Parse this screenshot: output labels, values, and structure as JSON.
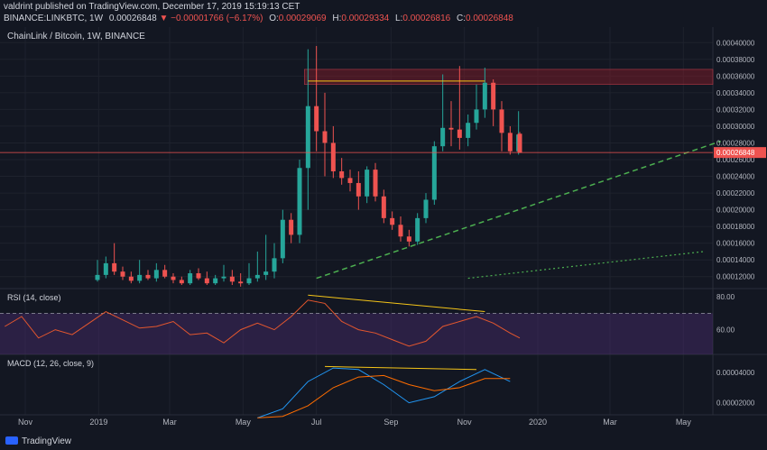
{
  "header": {
    "publisher": "valdrint published on TradingView.com, December 17, 2019 15:19:13 CET",
    "symbol": "BINANCE:LINKBTC, 1W",
    "last": "0.00026848",
    "change_arrow": "▼",
    "change": "−0.00001766 (−6.17%)",
    "o_label": "O:",
    "o": "0.00029069",
    "h_label": "H:",
    "h": "0.00029334",
    "l_label": "L:",
    "l": "0.00026816",
    "c_label": "C:",
    "c": "0.00026848"
  },
  "footer": {
    "brand": "TradingView"
  },
  "colors": {
    "background": "#131722",
    "up": "#26a69a",
    "down": "#ef5350",
    "rsi_line": "#e4572e",
    "rsi_band": "#4a2d6e",
    "macd": "#2196f3",
    "signal": "#ff6d00",
    "trendline": "#4caf50",
    "annotation": "#f5c518",
    "resistance_zone": "#8b1c2a"
  },
  "chart_data": [
    {
      "type": "candlestick",
      "title": "ChainLink / Bitcoin, 1W, BINANCE",
      "x_tick_labels": [
        "Nov",
        "2019",
        "Mar",
        "May",
        "Jul",
        "Sep",
        "Nov",
        "2020",
        "Mar",
        "May"
      ],
      "y_tick_labels": [
        "0.00040000",
        "0.00038000",
        "0.00036000",
        "0.00034000",
        "0.00032000",
        "0.00030000",
        "0.00028000",
        "0.00026000",
        "0.00024000",
        "0.00022000",
        "0.00020000",
        "0.00018000",
        "0.00016000",
        "0.00014000",
        "0.00012000"
      ],
      "ylim": [
        0.00011,
        0.00041
      ],
      "current_price_label": "0.00026848",
      "candles": [
        {
          "date": "2018-12-31",
          "o": 0.000116,
          "h": 0.00014,
          "l": 0.000114,
          "c": 0.000122
        },
        {
          "date": "2019-01-07",
          "o": 0.000122,
          "h": 0.000144,
          "l": 0.000118,
          "c": 0.000136
        },
        {
          "date": "2019-01-14",
          "o": 0.000136,
          "h": 0.00016,
          "l": 0.000122,
          "c": 0.000126
        },
        {
          "date": "2019-01-21",
          "o": 0.000126,
          "h": 0.000132,
          "l": 0.000116,
          "c": 0.00012
        },
        {
          "date": "2019-01-28",
          "o": 0.00012,
          "h": 0.000126,
          "l": 0.000112,
          "c": 0.000115
        },
        {
          "date": "2019-02-04",
          "o": 0.000115,
          "h": 0.00014,
          "l": 0.000112,
          "c": 0.000122
        },
        {
          "date": "2019-02-11",
          "o": 0.000122,
          "h": 0.000128,
          "l": 0.000116,
          "c": 0.000118
        },
        {
          "date": "2019-02-18",
          "o": 0.000118,
          "h": 0.000136,
          "l": 0.000114,
          "c": 0.000128
        },
        {
          "date": "2019-02-25",
          "o": 0.000128,
          "h": 0.000134,
          "l": 0.000118,
          "c": 0.00012
        },
        {
          "date": "2019-03-04",
          "o": 0.00012,
          "h": 0.000124,
          "l": 0.000112,
          "c": 0.000116
        },
        {
          "date": "2019-03-11",
          "o": 0.000116,
          "h": 0.00012,
          "l": 0.00011,
          "c": 0.000112
        },
        {
          "date": "2019-03-18",
          "o": 0.000112,
          "h": 0.000128,
          "l": 0.00011,
          "c": 0.000124
        },
        {
          "date": "2019-03-25",
          "o": 0.000124,
          "h": 0.00013,
          "l": 0.000116,
          "c": 0.000118
        },
        {
          "date": "2019-04-01",
          "o": 0.000118,
          "h": 0.000126,
          "l": 0.00011,
          "c": 0.000112
        },
        {
          "date": "2019-04-08",
          "o": 0.000112,
          "h": 0.000122,
          "l": 0.00011,
          "c": 0.000118
        },
        {
          "date": "2019-04-15",
          "o": 0.000118,
          "h": 0.000134,
          "l": 0.000114,
          "c": 0.00012
        },
        {
          "date": "2019-04-22",
          "o": 0.00012,
          "h": 0.000128,
          "l": 0.00011,
          "c": 0.000114
        },
        {
          "date": "2019-04-29",
          "o": 0.000114,
          "h": 0.000124,
          "l": 0.000108,
          "c": 0.000112
        },
        {
          "date": "2019-05-06",
          "o": 0.000112,
          "h": 0.000136,
          "l": 0.00011,
          "c": 0.000118
        },
        {
          "date": "2019-05-13",
          "o": 0.000118,
          "h": 0.00015,
          "l": 0.000114,
          "c": 0.000122
        },
        {
          "date": "2019-05-20",
          "o": 0.000122,
          "h": 0.00017,
          "l": 0.000116,
          "c": 0.000126
        },
        {
          "date": "2019-05-27",
          "o": 0.000126,
          "h": 0.00016,
          "l": 0.000118,
          "c": 0.000142
        },
        {
          "date": "2019-06-03",
          "o": 0.000142,
          "h": 0.0002,
          "l": 0.000136,
          "c": 0.000188
        },
        {
          "date": "2019-06-10",
          "o": 0.000188,
          "h": 0.000196,
          "l": 0.00016,
          "c": 0.00017
        },
        {
          "date": "2019-06-17",
          "o": 0.00017,
          "h": 0.00026,
          "l": 0.00016,
          "c": 0.00025
        },
        {
          "date": "2019-06-24",
          "o": 0.00025,
          "h": 0.000392,
          "l": 0.0002,
          "c": 0.000324
        },
        {
          "date": "2019-07-01",
          "o": 0.000324,
          "h": 0.000396,
          "l": 0.00027,
          "c": 0.000294
        },
        {
          "date": "2019-07-08",
          "o": 0.000294,
          "h": 0.00034,
          "l": 0.00024,
          "c": 0.00028
        },
        {
          "date": "2019-07-15",
          "o": 0.00028,
          "h": 0.0003,
          "l": 0.000238,
          "c": 0.000246
        },
        {
          "date": "2019-07-22",
          "o": 0.000246,
          "h": 0.000262,
          "l": 0.00023,
          "c": 0.000238
        },
        {
          "date": "2019-07-29",
          "o": 0.000238,
          "h": 0.000248,
          "l": 0.000222,
          "c": 0.000232
        },
        {
          "date": "2019-08-05",
          "o": 0.000232,
          "h": 0.000246,
          "l": 0.0002,
          "c": 0.000216
        },
        {
          "date": "2019-08-12",
          "o": 0.000216,
          "h": 0.000252,
          "l": 0.000208,
          "c": 0.000248
        },
        {
          "date": "2019-08-19",
          "o": 0.000248,
          "h": 0.000256,
          "l": 0.00021,
          "c": 0.000216
        },
        {
          "date": "2019-08-26",
          "o": 0.000216,
          "h": 0.000224,
          "l": 0.000184,
          "c": 0.00019
        },
        {
          "date": "2019-09-02",
          "o": 0.00019,
          "h": 0.000198,
          "l": 0.000176,
          "c": 0.000182
        },
        {
          "date": "2019-09-09",
          "o": 0.000182,
          "h": 0.000192,
          "l": 0.000162,
          "c": 0.000168
        },
        {
          "date": "2019-09-16",
          "o": 0.000168,
          "h": 0.000176,
          "l": 0.000156,
          "c": 0.000162
        },
        {
          "date": "2019-09-23",
          "o": 0.000162,
          "h": 0.000196,
          "l": 0.000158,
          "c": 0.00019
        },
        {
          "date": "2019-09-30",
          "o": 0.00019,
          "h": 0.00022,
          "l": 0.000184,
          "c": 0.000212
        },
        {
          "date": "2019-10-07",
          "o": 0.000212,
          "h": 0.000282,
          "l": 0.000206,
          "c": 0.000276
        },
        {
          "date": "2019-10-14",
          "o": 0.000276,
          "h": 0.000362,
          "l": 0.00027,
          "c": 0.000298
        },
        {
          "date": "2019-10-21",
          "o": 0.000298,
          "h": 0.00033,
          "l": 0.000276,
          "c": 0.000296
        },
        {
          "date": "2019-10-28",
          "o": 0.000296,
          "h": 0.000372,
          "l": 0.000272,
          "c": 0.000286
        },
        {
          "date": "2019-11-04",
          "o": 0.000286,
          "h": 0.000314,
          "l": 0.000276,
          "c": 0.000304
        },
        {
          "date": "2019-11-11",
          "o": 0.000304,
          "h": 0.00035,
          "l": 0.000296,
          "c": 0.00032
        },
        {
          "date": "2019-11-18",
          "o": 0.00032,
          "h": 0.00037,
          "l": 0.00031,
          "c": 0.000352
        },
        {
          "date": "2019-11-25",
          "o": 0.000352,
          "h": 0.000356,
          "l": 0.0003,
          "c": 0.00032
        },
        {
          "date": "2019-12-02",
          "o": 0.00032,
          "h": 0.00033,
          "l": 0.00027,
          "c": 0.000292
        },
        {
          "date": "2019-12-09",
          "o": 0.000292,
          "h": 0.0003,
          "l": 0.000266,
          "c": 0.00027
        },
        {
          "date": "2019-12-16",
          "o": 0.00027,
          "h": 0.000318,
          "l": 0.000266,
          "c": 0.00029
        },
        {
          "date": "2019-12-17",
          "o": 0.000291,
          "h": 0.000293,
          "l": 0.000268,
          "c": 0.000268
        }
      ],
      "resistance_zone": [
        0.00035,
        0.000368
      ],
      "horizontal_line": {
        "date_from": "2019-06-24",
        "date_to": "2019-11-18",
        "y": 0.000354
      },
      "trendline_dashed": {
        "points": [
          [
            "2019-07-01",
            0.000118
          ],
          [
            "2020-06-01",
            0.000282
          ]
        ]
      },
      "trendline_dotted": {
        "points": [
          [
            "2019-11-04",
            0.000118
          ],
          [
            "2020-05-18",
            0.00015
          ]
        ]
      }
    },
    {
      "type": "line",
      "title": "RSI (14, close)",
      "y_tick_labels": [
        "80.00",
        "60.00"
      ],
      "ylim": [
        45,
        85
      ],
      "reference_level": 70,
      "band": [
        40,
        70
      ],
      "x": [
        "2018-10-15",
        "2018-10-29",
        "2018-11-12",
        "2018-11-26",
        "2018-12-10",
        "2018-12-24",
        "2019-01-07",
        "2019-01-21",
        "2019-02-04",
        "2019-02-18",
        "2019-03-04",
        "2019-03-18",
        "2019-04-01",
        "2019-04-15",
        "2019-04-29",
        "2019-05-13",
        "2019-05-27",
        "2019-06-10",
        "2019-06-24",
        "2019-07-08",
        "2019-07-22",
        "2019-08-05",
        "2019-08-19",
        "2019-09-02",
        "2019-09-16",
        "2019-09-30",
        "2019-10-14",
        "2019-10-28",
        "2019-11-11",
        "2019-11-25",
        "2019-12-09",
        "2019-12-17"
      ],
      "y": [
        62,
        68,
        55,
        60,
        57,
        64,
        71,
        66,
        61,
        62,
        65,
        57,
        58,
        52,
        60,
        64,
        60,
        68,
        78,
        76,
        65,
        60,
        58,
        54,
        50,
        53,
        62,
        65,
        68,
        64,
        58,
        55
      ],
      "divergence_line": {
        "points": [
          [
            "2019-06-24",
            81
          ],
          [
            "2019-11-18",
            71
          ]
        ]
      }
    },
    {
      "type": "line",
      "title": "MACD (12, 26, close, 9)",
      "y_tick_labels": [
        "0.00004000",
        "0.00002000"
      ],
      "ylim": [
        1.2e-05,
        5.2e-05
      ],
      "series": [
        {
          "name": "MACD",
          "x": [
            "2019-05-13",
            "2019-06-03",
            "2019-06-24",
            "2019-07-15",
            "2019-08-05",
            "2019-08-26",
            "2019-09-16",
            "2019-10-07",
            "2019-10-28",
            "2019-11-18",
            "2019-12-09"
          ],
          "values": [
            1e-05,
            1.6e-05,
            3.4e-05,
            4.3e-05,
            4.2e-05,
            3.2e-05,
            2e-05,
            2.4e-05,
            3.4e-05,
            4.2e-05,
            3.4e-05
          ]
        },
        {
          "name": "Signal",
          "x": [
            "2019-05-13",
            "2019-06-03",
            "2019-06-24",
            "2019-07-15",
            "2019-08-05",
            "2019-08-26",
            "2019-09-16",
            "2019-10-07",
            "2019-10-28",
            "2019-11-18",
            "2019-12-09"
          ],
          "values": [
            1e-05,
            1.1e-05,
            1.8e-05,
            3e-05,
            3.7e-05,
            3.8e-05,
            3.2e-05,
            2.8e-05,
            3e-05,
            3.6e-05,
            3.6e-05
          ]
        }
      ],
      "divergence_line": {
        "points": [
          [
            "2019-07-08",
            4.4e-05
          ],
          [
            "2019-11-11",
            4.2e-05
          ]
        ]
      }
    }
  ]
}
